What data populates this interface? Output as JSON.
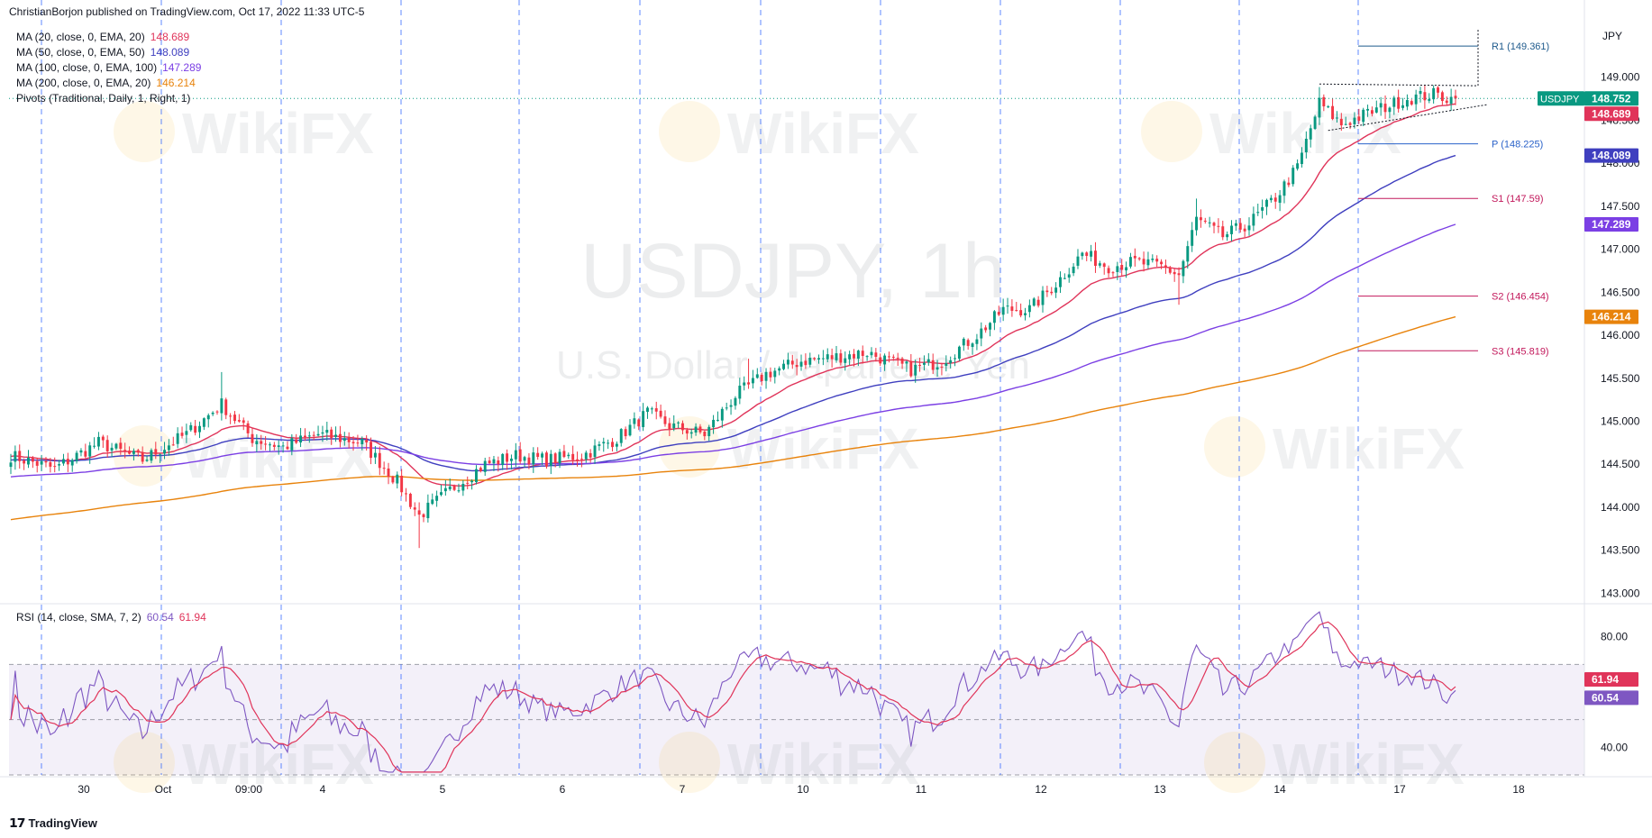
{
  "header": {
    "attribution": "ChristianBorjon published on TradingView.com, Oct 17, 2022 11:33 UTC-5"
  },
  "indicators": [
    {
      "label": "MA (20, close, 0, EMA, 20)",
      "value": "148.689",
      "color": "#e0345a"
    },
    {
      "label": "MA (50, close, 0, EMA, 50)",
      "value": "148.089",
      "color": "#3f3fbf"
    },
    {
      "label": "MA (100, close, 0, EMA, 100)",
      "value": "147.289",
      "color": "#7b3fe4"
    },
    {
      "label": "MA (200, close, 0, EMA, 20)",
      "value": "146.214",
      "color": "#e8830c"
    },
    {
      "label": "Pivots (Traditional, Daily, 1, Right, 1)",
      "value": "",
      "color": "#131722"
    }
  ],
  "watermark": {
    "symbol": "USDJPY, 1h",
    "name": "U.S. Dollar / Japanese Yen",
    "brand": "WikiFX"
  },
  "currency_label": "JPY",
  "branding": {
    "logo": "TradingView"
  },
  "chart_data": [
    {
      "type": "candlestick",
      "symbol": "USDJPY",
      "interval": "1h",
      "ylim": [
        142.9,
        149.75
      ],
      "y_ticks": [
        "149.000",
        "148.500",
        "148.000",
        "147.500",
        "147.000",
        "146.500",
        "146.000",
        "145.500",
        "145.000",
        "144.500",
        "144.000",
        "143.500",
        "143.000"
      ],
      "y_tick_values": [
        149.0,
        148.5,
        148.0,
        147.5,
        147.0,
        146.5,
        146.0,
        145.5,
        145.0,
        144.5,
        144.0,
        143.5,
        143.0
      ],
      "x_tick_labels": [
        "30",
        "Oct",
        "09:00",
        "4",
        "5",
        "6",
        "7",
        "10",
        "11",
        "12",
        "13",
        "14",
        "17",
        "18"
      ],
      "close_anchors": [
        [
          0,
          144.6
        ],
        [
          10,
          144.45
        ],
        [
          20,
          144.75
        ],
        [
          30,
          144.55
        ],
        [
          40,
          144.85
        ],
        [
          48,
          145.2
        ],
        [
          55,
          144.8
        ],
        [
          62,
          144.7
        ],
        [
          70,
          144.85
        ],
        [
          80,
          144.75
        ],
        [
          88,
          144.3
        ],
        [
          93,
          143.9
        ],
        [
          100,
          144.2
        ],
        [
          108,
          144.5
        ],
        [
          115,
          144.6
        ],
        [
          122,
          144.55
        ],
        [
          130,
          144.6
        ],
        [
          138,
          144.8
        ],
        [
          145,
          145.1
        ],
        [
          150,
          144.95
        ],
        [
          158,
          144.85
        ],
        [
          165,
          145.3
        ],
        [
          172,
          145.55
        ],
        [
          180,
          145.7
        ],
        [
          188,
          145.75
        ],
        [
          195,
          145.8
        ],
        [
          205,
          145.6
        ],
        [
          212,
          145.7
        ],
        [
          220,
          146.0
        ],
        [
          226,
          146.3
        ],
        [
          232,
          146.3
        ],
        [
          238,
          146.6
        ],
        [
          244,
          146.95
        ],
        [
          250,
          146.8
        ],
        [
          256,
          146.85
        ],
        [
          262,
          146.8
        ],
        [
          266,
          146.7
        ],
        [
          270,
          147.35
        ],
        [
          276,
          147.15
        ],
        [
          282,
          147.3
        ],
        [
          288,
          147.6
        ],
        [
          293,
          147.95
        ],
        [
          298,
          148.7
        ],
        [
          303,
          148.45
        ],
        [
          310,
          148.6
        ],
        [
          318,
          148.75
        ],
        [
          324,
          148.8
        ],
        [
          328,
          148.75
        ]
      ],
      "pivots": [
        {
          "label": "R1 (149.361)",
          "value": 149.361,
          "color": "#1e5a8c"
        },
        {
          "label": "P (148.225)",
          "value": 148.225,
          "color": "#2a62c9"
        },
        {
          "label": "S1 (147.59)",
          "value": 147.59,
          "color": "#c2185b"
        },
        {
          "label": "S2 (146.454)",
          "value": 146.454,
          "color": "#c2185b"
        },
        {
          "label": "S3 (145.819)",
          "value": 145.819,
          "color": "#c2185b"
        }
      ],
      "price_badges": [
        {
          "text": "USDJPY",
          "value": "148.752",
          "color": "#089981"
        },
        {
          "text": "",
          "value": "148.689",
          "color": "#e0345a"
        },
        {
          "text": "",
          "value": "148.089",
          "color": "#3f3fbf"
        },
        {
          "text": "",
          "value": "147.289",
          "color": "#7b3fe4"
        },
        {
          "text": "",
          "value": "146.214",
          "color": "#e8830c"
        }
      ],
      "moving_averages": [
        {
          "name": "MA 20",
          "value": 148.689,
          "color": "#e0345a"
        },
        {
          "name": "MA 50",
          "value": 148.089,
          "color": "#3f3fbf"
        },
        {
          "name": "MA 100",
          "value": 147.289,
          "color": "#7b3fe4"
        },
        {
          "name": "MA 200",
          "value": 146.214,
          "color": "#e8830c"
        }
      ],
      "up_color": "#089981",
      "down_color": "#f23645"
    },
    {
      "type": "line",
      "indicator": "RSI (14, close, SMA, 7, 2)",
      "label": "RSI (14, close, SMA, 7, 2)",
      "rsi_value": "60.54",
      "sma_value": "61.94",
      "ylim": [
        30,
        90
      ],
      "y_ticks": [
        "80.00",
        "40.00"
      ],
      "y_tick_values": [
        80,
        40
      ],
      "band": [
        30,
        70
      ],
      "rsi_color": "#7e57c2",
      "sma_color": "#e0345a"
    }
  ]
}
